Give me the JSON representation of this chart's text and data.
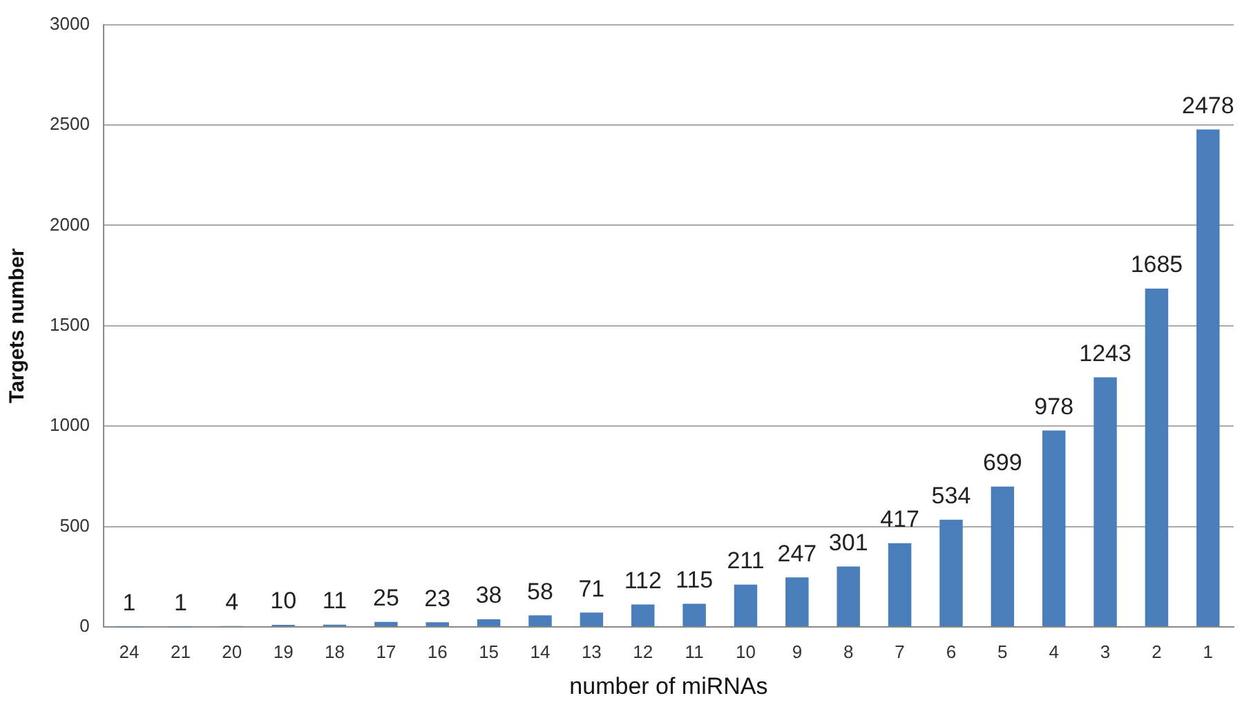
{
  "chart_data": {
    "type": "bar",
    "xlabel": "number of miRNAs",
    "ylabel": "Targets number",
    "categories": [
      "24",
      "21",
      "20",
      "19",
      "18",
      "17",
      "16",
      "15",
      "14",
      "13",
      "12",
      "11",
      "10",
      "9",
      "8",
      "7",
      "6",
      "5",
      "4",
      "3",
      "2",
      "1"
    ],
    "values": [
      1,
      1,
      4,
      10,
      11,
      25,
      23,
      38,
      58,
      71,
      112,
      115,
      211,
      247,
      301,
      417,
      534,
      699,
      978,
      1243,
      1685,
      2478
    ],
    "color": "#4a7ebb",
    "ylim": [
      0,
      3000
    ],
    "yticks": [
      0,
      500,
      1000,
      1500,
      2000,
      2500,
      3000
    ],
    "grid": "y",
    "legend": false,
    "data_labels": true
  }
}
